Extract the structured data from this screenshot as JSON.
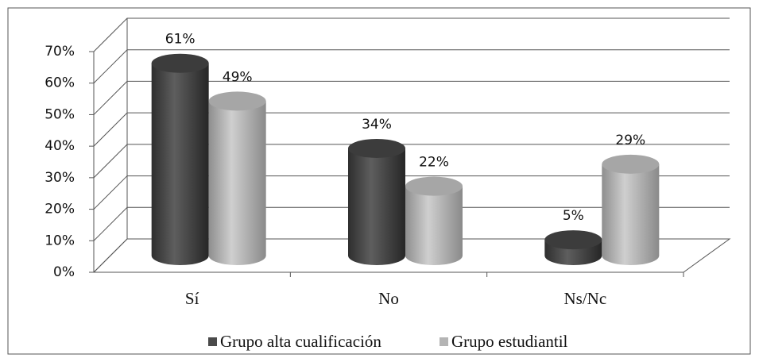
{
  "chart_data": {
    "type": "bar3d",
    "categories": [
      "Sí",
      "No",
      "Ns/Nc"
    ],
    "series": [
      {
        "name": "Grupo alta cualificación",
        "color": "#4a4a4a",
        "values": [
          61,
          34,
          5
        ],
        "value_labels": [
          "61%",
          "34%",
          "5%"
        ]
      },
      {
        "name": "Grupo estudiantil",
        "color": "#b4b4b4",
        "values": [
          49,
          22,
          29
        ],
        "value_labels": [
          "49%",
          "22%",
          "29%"
        ]
      }
    ],
    "ylim": [
      0,
      70
    ],
    "yticks": [
      {
        "value": 0,
        "label": "0%"
      },
      {
        "value": 10,
        "label": "10%"
      },
      {
        "value": 20,
        "label": "20%"
      },
      {
        "value": 30,
        "label": "30%"
      },
      {
        "value": 40,
        "label": "40%"
      },
      {
        "value": 50,
        "label": "50%"
      },
      {
        "value": 60,
        "label": "60%"
      },
      {
        "value": 70,
        "label": "70%"
      }
    ],
    "grid": true,
    "legend": "bottom"
  }
}
